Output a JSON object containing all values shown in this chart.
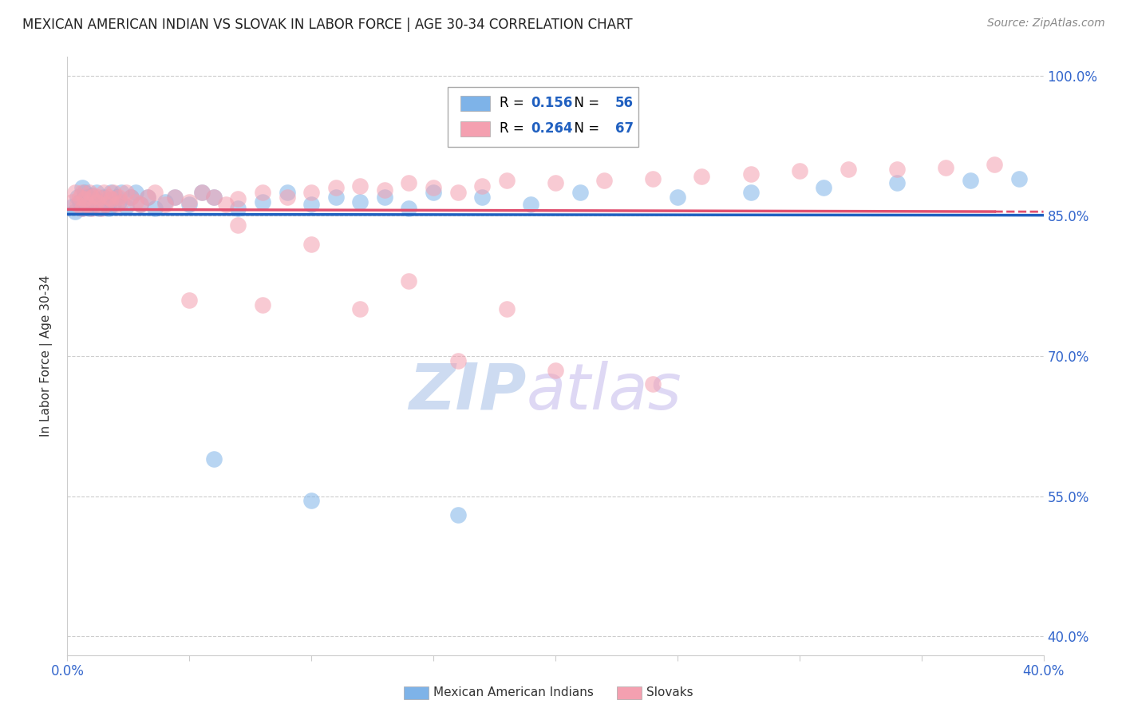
{
  "title": "MEXICAN AMERICAN INDIAN VS SLOVAK IN LABOR FORCE | AGE 30-34 CORRELATION CHART",
  "source": "Source: ZipAtlas.com",
  "ylabel": "In Labor Force | Age 30-34",
  "xlim": [
    0.0,
    0.4
  ],
  "ylim": [
    0.38,
    1.02
  ],
  "xticks": [
    0.0,
    0.05,
    0.1,
    0.15,
    0.2,
    0.25,
    0.3,
    0.35,
    0.4
  ],
  "yticks": [
    0.4,
    0.55,
    0.7,
    0.85,
    1.0
  ],
  "yticklabels": [
    "40.0%",
    "55.0%",
    "70.0%",
    "85.0%",
    "100.0%"
  ],
  "blue_R": 0.156,
  "blue_N": 56,
  "pink_R": 0.264,
  "pink_N": 67,
  "blue_color": "#7EB3E8",
  "pink_color": "#F4A0B0",
  "blue_line_color": "#2060C0",
  "pink_line_color": "#E05070",
  "legend1_label": "Mexican American Indians",
  "legend2_label": "Slovaks",
  "watermark_zip": "ZIP",
  "watermark_atlas": "atlas",
  "blue_x": [
    0.002,
    0.003,
    0.004,
    0.005,
    0.006,
    0.006,
    0.007,
    0.008,
    0.008,
    0.009,
    0.01,
    0.01,
    0.011,
    0.012,
    0.013,
    0.014,
    0.015,
    0.016,
    0.017,
    0.018,
    0.019,
    0.02,
    0.021,
    0.022,
    0.024,
    0.026,
    0.028,
    0.03,
    0.033,
    0.036,
    0.04,
    0.044,
    0.05,
    0.055,
    0.06,
    0.07,
    0.08,
    0.09,
    0.1,
    0.11,
    0.12,
    0.13,
    0.14,
    0.15,
    0.17,
    0.19,
    0.21,
    0.25,
    0.28,
    0.31,
    0.34,
    0.37,
    0.39,
    0.06,
    0.1,
    0.16
  ],
  "blue_y": [
    0.86,
    0.855,
    0.87,
    0.865,
    0.88,
    0.858,
    0.875,
    0.862,
    0.87,
    0.858,
    0.872,
    0.86,
    0.868,
    0.875,
    0.858,
    0.865,
    0.87,
    0.862,
    0.858,
    0.875,
    0.862,
    0.87,
    0.865,
    0.875,
    0.86,
    0.87,
    0.875,
    0.862,
    0.87,
    0.858,
    0.865,
    0.87,
    0.862,
    0.875,
    0.87,
    0.858,
    0.865,
    0.875,
    0.862,
    0.87,
    0.865,
    0.87,
    0.858,
    0.875,
    0.87,
    0.862,
    0.875,
    0.87,
    0.875,
    0.88,
    0.885,
    0.888,
    0.89,
    0.59,
    0.545,
    0.53
  ],
  "pink_x": [
    0.002,
    0.003,
    0.004,
    0.005,
    0.006,
    0.006,
    0.007,
    0.008,
    0.009,
    0.01,
    0.01,
    0.011,
    0.012,
    0.013,
    0.014,
    0.015,
    0.016,
    0.017,
    0.018,
    0.019,
    0.02,
    0.021,
    0.022,
    0.024,
    0.026,
    0.028,
    0.03,
    0.033,
    0.036,
    0.04,
    0.044,
    0.05,
    0.055,
    0.06,
    0.065,
    0.07,
    0.08,
    0.09,
    0.1,
    0.11,
    0.12,
    0.13,
    0.14,
    0.15,
    0.16,
    0.17,
    0.18,
    0.2,
    0.22,
    0.24,
    0.26,
    0.28,
    0.3,
    0.32,
    0.34,
    0.36,
    0.38,
    0.05,
    0.08,
    0.12,
    0.16,
    0.2,
    0.24,
    0.07,
    0.1,
    0.14,
    0.18
  ],
  "pink_y": [
    0.865,
    0.875,
    0.862,
    0.87,
    0.858,
    0.875,
    0.868,
    0.862,
    0.875,
    0.87,
    0.858,
    0.872,
    0.865,
    0.87,
    0.858,
    0.875,
    0.862,
    0.87,
    0.868,
    0.875,
    0.862,
    0.87,
    0.865,
    0.875,
    0.87,
    0.865,
    0.862,
    0.87,
    0.875,
    0.862,
    0.87,
    0.865,
    0.875,
    0.87,
    0.862,
    0.868,
    0.875,
    0.87,
    0.875,
    0.88,
    0.882,
    0.878,
    0.885,
    0.88,
    0.875,
    0.882,
    0.888,
    0.885,
    0.888,
    0.89,
    0.892,
    0.895,
    0.898,
    0.9,
    0.9,
    0.902,
    0.905,
    0.76,
    0.755,
    0.75,
    0.695,
    0.685,
    0.67,
    0.84,
    0.82,
    0.78,
    0.75
  ]
}
